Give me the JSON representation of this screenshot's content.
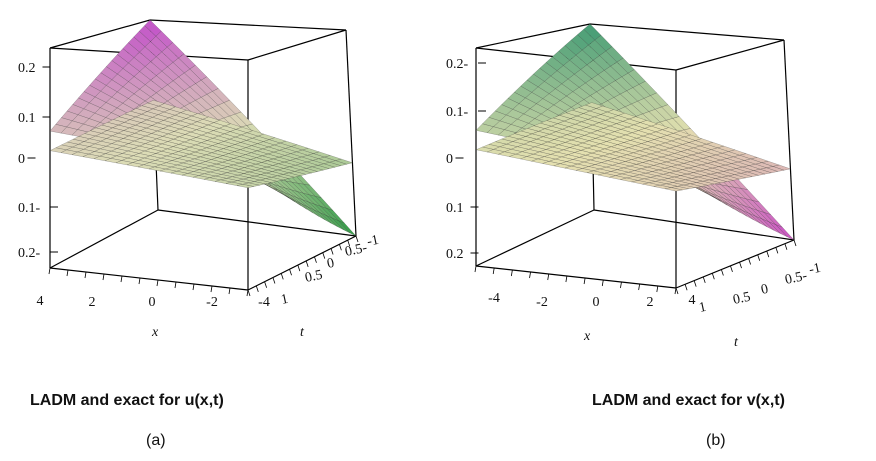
{
  "figures": [
    {
      "caption": "LADM and exact for u(x,t)",
      "sublabel": "(a)",
      "colors": {
        "top": "#c24fc9",
        "low": "#2e9a45",
        "mid": "#dcdcb6",
        "grid": "#262626"
      },
      "chart_data": {
        "type": "surface",
        "xlabel": "x",
        "ylabel": "t",
        "xticks": [
          "4",
          "2",
          "0",
          "-2",
          "-4"
        ],
        "tticks": [
          "1",
          "0.5",
          "0",
          "0.5-",
          "-1"
        ],
        "zticks": [
          "0.2",
          "0.1",
          "0",
          "0.1-",
          "0.2-"
        ],
        "xlim": [
          -5,
          5
        ],
        "tlim": [
          -1,
          1
        ],
        "zlim": [
          -0.2,
          0.25
        ],
        "surfaces": [
          {
            "peak": 0.25,
            "corner_high": 0.08,
            "corner_low": -0.2
          },
          {
            "peak": 0.06,
            "corner_high": 0.04,
            "corner_low": -0.04
          }
        ]
      }
    },
    {
      "caption": "LADM and exact for v(x,t)",
      "sublabel": "(b)",
      "colors": {
        "top": "#3f9a72",
        "low": "#c94fc4",
        "mid": "#e4e0b0",
        "grid": "#262626"
      },
      "chart_data": {
        "type": "surface",
        "xlabel": "x",
        "ylabel": "t",
        "xticks": [
          "-4",
          "-2",
          "0",
          "2",
          "4"
        ],
        "tticks": [
          "1",
          "0.5",
          "0",
          "0.5-",
          "-1"
        ],
        "zticks": [
          "0.2-",
          "0.1-",
          "0",
          "0.1",
          "0.2"
        ],
        "xlim": [
          -5,
          5
        ],
        "tlim": [
          -1,
          1
        ],
        "zlim": [
          -0.2,
          0.25
        ],
        "surfaces": [
          {
            "peak": 0.25,
            "corner_high": 0.08,
            "corner_low": -0.2
          },
          {
            "peak": 0.06,
            "corner_high": 0.04,
            "corner_low": -0.04
          }
        ]
      }
    }
  ]
}
